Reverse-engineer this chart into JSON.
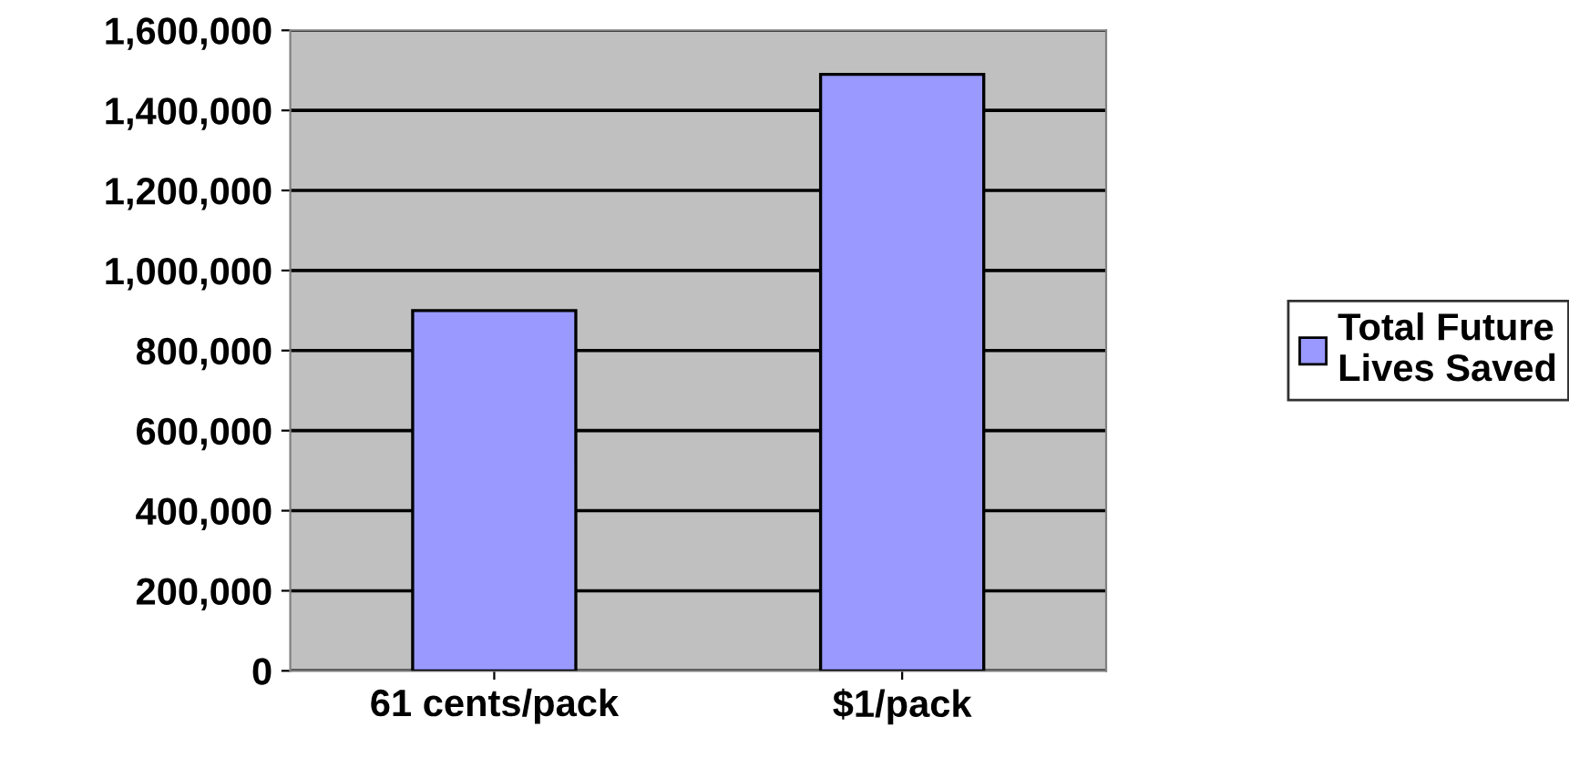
{
  "chart_data": {
    "type": "bar",
    "categories": [
      "61 cents/pack",
      "$1/pack"
    ],
    "series": [
      {
        "name": "Total Future Lives Saved",
        "color": "#9999ff",
        "values": [
          900000,
          1490000
        ]
      }
    ],
    "ylim": [
      0,
      1600000
    ],
    "yticks": [
      {
        "value": 0,
        "label": "0"
      },
      {
        "value": 200000,
        "label": "200,000"
      },
      {
        "value": 400000,
        "label": "400,000"
      },
      {
        "value": 600000,
        "label": "600,000"
      },
      {
        "value": 800000,
        "label": "800,000"
      },
      {
        "value": 1000000,
        "label": "1,000,000"
      },
      {
        "value": 1200000,
        "label": "1,200,000"
      },
      {
        "value": 1400000,
        "label": "1,400,000"
      },
      {
        "value": 1600000,
        "label": "1,600,000"
      }
    ],
    "grid": "y",
    "legend": "right"
  }
}
